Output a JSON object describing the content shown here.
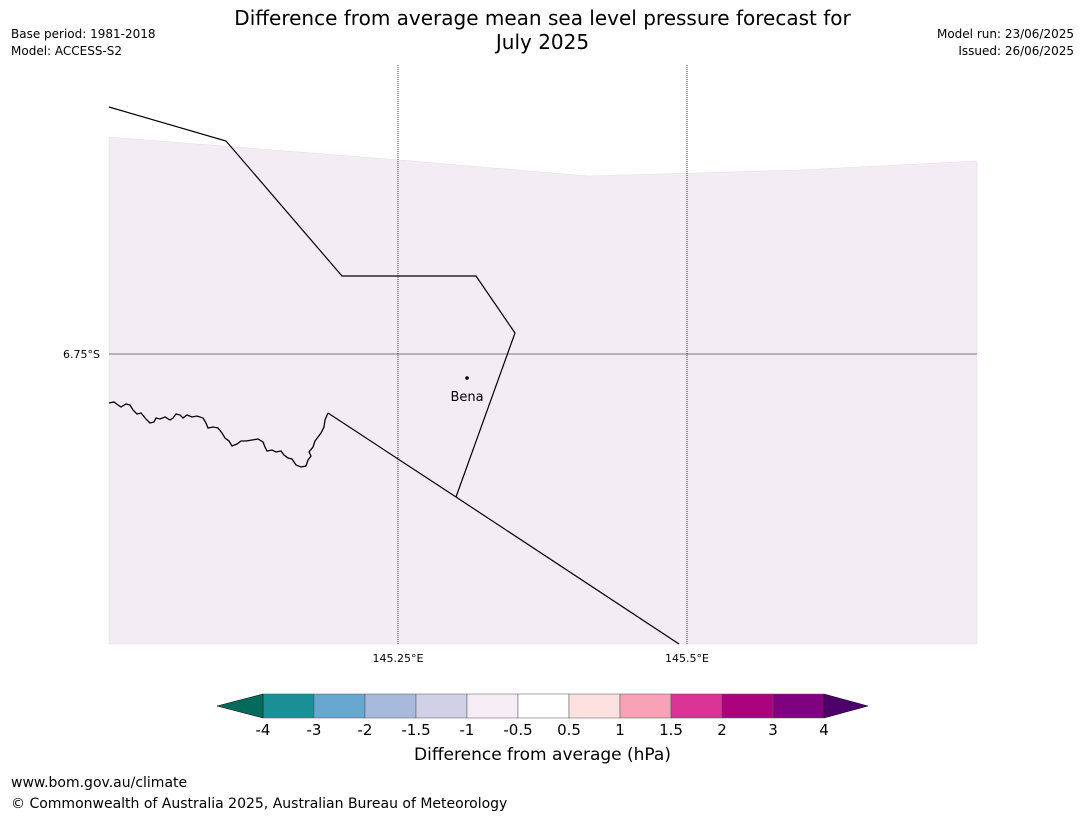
{
  "header": {
    "title_line1": "Difference from average mean sea level pressure forecast for",
    "title_line2": "July 2025",
    "left_line1": "Base period: 1981-2018",
    "left_line2": "Model: ACCESS-S2",
    "right_line1": "Model run: 23/06/2025",
    "right_line2": "Issued: 26/06/2025"
  },
  "map": {
    "fill_color": "#f4ecf5",
    "place_label": "Bena",
    "lat_label": "6.75°S",
    "lon_labels": [
      "145.25°E",
      "145.5°E"
    ]
  },
  "colorbar": {
    "title": "Difference from average (hPa)",
    "tick_labels": [
      "-4",
      "-3",
      "-2",
      "-1.5",
      "-1",
      "-0.5",
      "0.5",
      "1",
      "1.5",
      "2",
      "3",
      "4"
    ],
    "colors": [
      "#1a8f96",
      "#68a8d0",
      "#a7badb",
      "#d0d0e6",
      "#f5ecf6",
      "#ffffff",
      "#fde0e0",
      "#f9a1b7",
      "#dc3496",
      "#ac027d",
      "#7f017f"
    ],
    "low_extend_color": "#046b5c",
    "high_extend_color": "#4d0069"
  },
  "footer": {
    "line1": "www.bom.gov.au/climate",
    "line2": "© Commonwealth of Australia 2025, Australian Bureau of Meteorology"
  }
}
